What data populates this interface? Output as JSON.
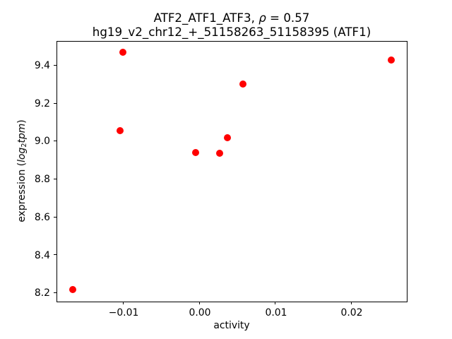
{
  "figure": {
    "title_line1": {
      "prefix": "ATF2_ATF1_ATF3, ",
      "rho_symbol": "ρ",
      "equals": " = ",
      "rho_value": "0.57"
    },
    "title_line2": "hg19_v2_chr12_+_51158263_51158395 (ATF1)",
    "xlabel": "activity",
    "ylabel": {
      "prefix": "expression (",
      "log": "log",
      "sub": "2",
      "tpm": "tpm",
      "suffix": ")"
    }
  },
  "chart_data": {
    "type": "scatter",
    "title": "ATF2_ATF1_ATF3, ρ = 0.57\nhg19_v2_chr12_+_51158263_51158395 (ATF1)",
    "xlabel": "activity",
    "ylabel": "expression (log2 tpm)",
    "rho": 0.57,
    "marker_color": "#ff0000",
    "marker_diameter_px": 10,
    "points": [
      {
        "x": -0.01661,
        "y": 8.216
      },
      {
        "x": -0.01037,
        "y": 9.053
      },
      {
        "x": -0.01003,
        "y": 9.468
      },
      {
        "x": -0.00045,
        "y": 8.939
      },
      {
        "x": 0.0027,
        "y": 8.937
      },
      {
        "x": 0.00365,
        "y": 9.019
      },
      {
        "x": 0.00576,
        "y": 9.3
      },
      {
        "x": 0.02518,
        "y": 9.429
      }
    ],
    "xlim": [
      -0.018765,
      0.027265
    ],
    "ylim": [
      8.1523,
      9.5294
    ],
    "xticks": [
      -0.01,
      0,
      0.01,
      0.02
    ],
    "xtick_labels": [
      "−0.01",
      "0.00",
      "0.01",
      "0.02"
    ],
    "yticks": [
      8.2,
      8.4,
      8.6,
      8.8,
      9.0,
      9.2,
      9.4
    ],
    "ytick_labels": [
      "8.2",
      "8.4",
      "8.6",
      "8.8",
      "9.0",
      "9.2",
      "9.4"
    ],
    "grid": false,
    "legend": null
  }
}
